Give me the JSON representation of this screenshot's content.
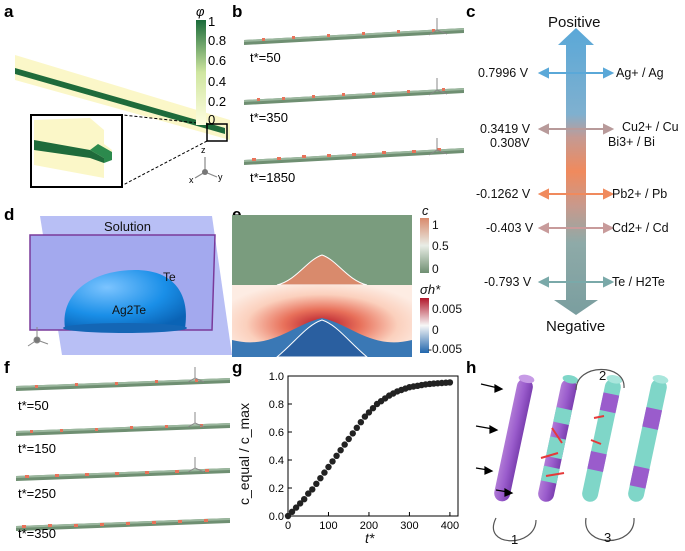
{
  "panels": {
    "a": "a",
    "b": "b",
    "c": "c",
    "d": "d",
    "e": "e",
    "f": "f",
    "g": "g",
    "h": "h"
  },
  "colorbar_a": {
    "symbol": "φ",
    "ticks": [
      "1",
      "0.8",
      "0.6",
      "0.4",
      "0.2",
      "0"
    ]
  },
  "axes_triad": {
    "z": "z",
    "x": "x",
    "y": "y"
  },
  "panel_b": {
    "times": [
      "t*=50",
      "t*=350",
      "t*=1850"
    ]
  },
  "panel_c": {
    "top": "Positive",
    "bottom": "Negative",
    "colors": {
      "blue": "#5aa8d8",
      "orange": "#f08a5d",
      "grey": "#7a9e9f",
      "pink": "#c89b9b"
    },
    "rows": [
      {
        "potential": "0.7996 V",
        "couple": "Ag+ / Ag",
        "color": "#5aa8d8"
      },
      {
        "potential": "0.3419 V",
        "couple": "Cu2+ / Cu",
        "color": "#b89a9a"
      },
      {
        "potential": "0.308V",
        "couple": "Bi3+ / Bi",
        "color": "#b89a9a"
      },
      {
        "potential": "-0.1262 V",
        "couple": "Pb2+ / Pb",
        "color": "#f08a5d"
      },
      {
        "potential": "-0.403 V",
        "couple": "Cd2+ / Cd",
        "color": "#c89b9b"
      },
      {
        "potential": "-0.793 V",
        "couple": "Te / H2Te",
        "color": "#7aa9a9"
      }
    ]
  },
  "panel_d": {
    "solution": "Solution",
    "te": "Te",
    "ag2te": "Ag2Te"
  },
  "panel_e": {
    "c_label": "c",
    "c_ticks": [
      "1",
      "0.5",
      "0"
    ],
    "sigma_label": "σh*",
    "sigma_ticks": [
      "0.005",
      "0",
      "-0.005"
    ]
  },
  "panel_f": {
    "times": [
      "t*=50",
      "t*=150",
      "t*=250",
      "t*=350"
    ]
  },
  "panel_g": {
    "ylabel": "c_equal / c_max",
    "xlabel": "t*"
  },
  "panel_h": {
    "steps": [
      "1",
      "2",
      "3"
    ]
  },
  "chart_data": {
    "type": "scatter",
    "xlabel": "t*",
    "ylabel": "c_equal / c_max",
    "xlim": [
      0,
      420
    ],
    "ylim": [
      0,
      1.0
    ],
    "xticks": [
      "0",
      "100",
      "200",
      "300",
      "400"
    ],
    "yticks": [
      "0.0",
      "0.2",
      "0.4",
      "0.6",
      "0.8",
      "1.0"
    ],
    "x": [
      0,
      10,
      20,
      30,
      40,
      50,
      60,
      70,
      80,
      90,
      100,
      110,
      120,
      130,
      140,
      150,
      160,
      170,
      180,
      190,
      200,
      210,
      220,
      230,
      240,
      250,
      260,
      270,
      280,
      290,
      300,
      310,
      320,
      330,
      340,
      350,
      360,
      370,
      380,
      390,
      400
    ],
    "y": [
      0.0,
      0.03,
      0.06,
      0.09,
      0.12,
      0.16,
      0.19,
      0.23,
      0.27,
      0.31,
      0.35,
      0.39,
      0.43,
      0.47,
      0.51,
      0.55,
      0.59,
      0.63,
      0.67,
      0.71,
      0.74,
      0.77,
      0.8,
      0.82,
      0.84,
      0.86,
      0.875,
      0.89,
      0.9,
      0.91,
      0.92,
      0.925,
      0.93,
      0.935,
      0.94,
      0.943,
      0.946,
      0.948,
      0.95,
      0.952,
      0.954
    ]
  }
}
